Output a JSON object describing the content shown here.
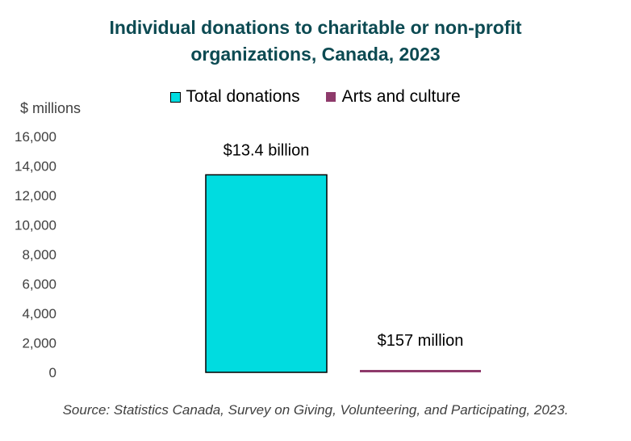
{
  "title_line1": "Individual donations to charitable or non-profit",
  "title_line2": "organizations, Canada, 2023",
  "unit_label": "$ millions",
  "source": "Source: Statistics Canada, Survey on Giving, Volunteering, and Participating, 2023.",
  "legend": [
    {
      "label": "Total donations",
      "color": "#00dce0",
      "shape": "box"
    },
    {
      "label": "Arts and culture",
      "color": "#8e3a6b",
      "shape": "line"
    }
  ],
  "chart_data": {
    "type": "bar",
    "series": [
      {
        "name": "Total donations",
        "value": 13400,
        "data_label": "$13.4 billion",
        "color": "#00dce0"
      },
      {
        "name": "Arts and culture",
        "value": 157,
        "data_label": "$157 million",
        "color": "#8e3a6b"
      }
    ],
    "ylim": [
      0,
      16000
    ],
    "yticks": [
      0,
      2000,
      4000,
      6000,
      8000,
      10000,
      12000,
      14000,
      16000
    ],
    "ytick_labels": [
      "0",
      "2,000",
      "4,000",
      "6,000",
      "8,000",
      "10,000",
      "12,000",
      "14,000",
      "16,000"
    ],
    "grid": false,
    "legend_position": "top"
  }
}
